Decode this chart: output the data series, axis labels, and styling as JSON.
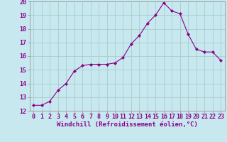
{
  "x": [
    0,
    1,
    2,
    3,
    4,
    5,
    6,
    7,
    8,
    9,
    10,
    11,
    12,
    13,
    14,
    15,
    16,
    17,
    18,
    19,
    20,
    21,
    22,
    23
  ],
  "y": [
    12.4,
    12.4,
    12.7,
    13.5,
    14.0,
    14.9,
    15.3,
    15.4,
    15.4,
    15.4,
    15.5,
    15.9,
    16.9,
    17.5,
    18.4,
    19.0,
    19.9,
    19.3,
    19.1,
    17.6,
    16.5,
    16.3,
    16.3,
    15.7
  ],
  "line_color": "#880088",
  "marker": "D",
  "marker_size": 2.2,
  "background_color": "#c8e8f0",
  "grid_color": "#aacccc",
  "xlabel": "Windchill (Refroidissement éolien,°C)",
  "xlabel_fontsize": 6.5,
  "xtick_labels": [
    "0",
    "1",
    "2",
    "3",
    "4",
    "5",
    "6",
    "7",
    "8",
    "9",
    "10",
    "11",
    "12",
    "13",
    "14",
    "15",
    "16",
    "17",
    "18",
    "19",
    "20",
    "21",
    "22",
    "23"
  ],
  "ylim": [
    12,
    20
  ],
  "yticks": [
    12,
    13,
    14,
    15,
    16,
    17,
    18,
    19,
    20
  ],
  "tick_fontsize": 6.0,
  "spine_color": "#888888"
}
